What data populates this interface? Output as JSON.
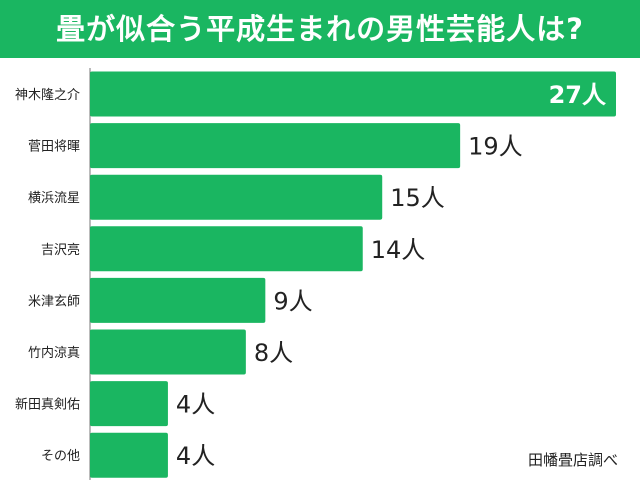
{
  "title": "畳が似合う平成生まれの男性芸能人は?",
  "source": "田幡畳店調べ",
  "colors": {
    "banner": "#1ab661",
    "bar": "#1ab661",
    "axis": "#777777"
  },
  "chart_data": {
    "type": "bar",
    "orientation": "horizontal",
    "title": "畳が似合う平成生まれの男性芸能人は?",
    "unit": "人",
    "categories": [
      "神木隆之介",
      "菅田将暉",
      "横浜流星",
      "吉沢亮",
      "米津玄師",
      "竹内涼真",
      "新田真剣佑",
      "その他"
    ],
    "values": [
      27,
      19,
      15,
      14,
      9,
      8,
      4,
      4
    ],
    "value_labels": [
      "27人",
      "19人",
      "15人",
      "14人",
      "9人",
      "8人",
      "4人",
      "4人"
    ],
    "xlim": [
      0,
      27
    ],
    "grid": false
  }
}
